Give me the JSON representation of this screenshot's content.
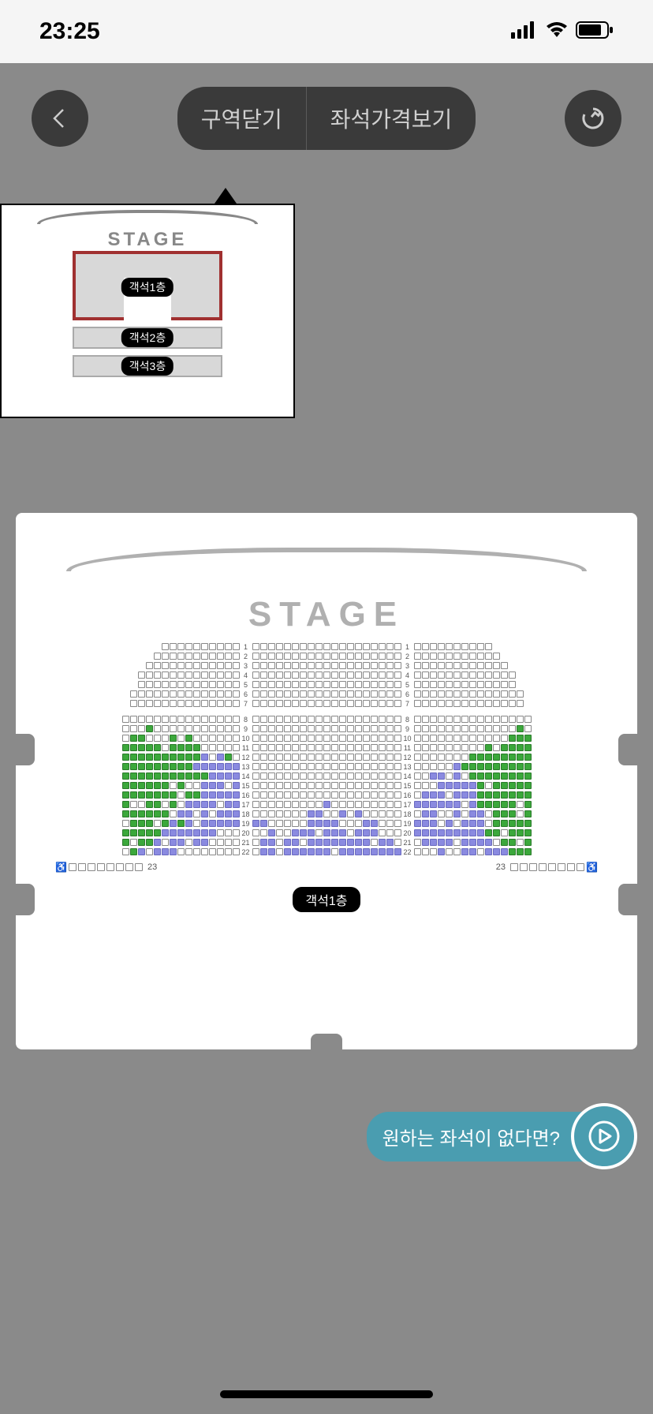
{
  "status": {
    "time": "23:25"
  },
  "toolbar": {
    "zone_close": "구역닫기",
    "price_view": "좌석가격보기"
  },
  "minimap": {
    "stage": "STAGE",
    "floor1": "객석1층",
    "floor2": "객석2층",
    "floor3": "객석3층"
  },
  "main": {
    "stage": "STAGE",
    "floor_label": "객석1층",
    "row_23_left": "23",
    "row_23_right": "23",
    "colors": {
      "available": "#ffffff",
      "green": "#3ba83b",
      "purple": "#8a8ae0"
    },
    "block1_rows": [
      1,
      2,
      3,
      4,
      5,
      6,
      7
    ],
    "block1": {
      "left": [
        "0000000000",
        "00000000000",
        "000000000000",
        "0000000000000",
        "0000000000000",
        "00000000000000",
        "00000000000000"
      ],
      "center": [
        "0000000000000000000",
        "0000000000000000000",
        "0000000000000000000",
        "0000000000000000000",
        "0000000000000000000",
        "0000000000000000000",
        "0000000000000000000"
      ],
      "right": [
        "0000000000",
        "00000000000",
        "000000000000",
        "0000000000000",
        "0000000000000",
        "00000000000000",
        "00000000000000"
      ]
    },
    "block2_rows": [
      8,
      9,
      10,
      11,
      12,
      13,
      14,
      15,
      16,
      17,
      18,
      19,
      20,
      21,
      22
    ],
    "block2": {
      "left": [
        "000000000000000",
        "000g00000000000",
        "0gg000g0g000000",
        "ggggg0gggg00000",
        "ggggggggggp0pg0",
        "gggggggggpppppp",
        "gggggggggggpppp",
        "gggggg0g00ppp0p",
        "ggggggg0ggppppp",
        "g00gg0g0pppp0pp",
        "gggggg0pp0p0ppp",
        "0ggg0gpgp0ppppp",
        "gggggppppppp000",
        "g0ggp0pp0pp0000",
        "0gp0ppp00000000"
      ],
      "center": [
        "0000000000000000000",
        "0000000000000000000",
        "0000000000000000000",
        "0000000000000000000",
        "0000000000000000000",
        "0000000000000000000",
        "0000000000000000000",
        "0000000000000000000",
        "0000000000000000000",
        "000000000p000000000",
        "0000000pp00p0p00000",
        "pp00000pppp000pp000",
        "00p00ppp0ppp0ppp000",
        "0pp0pp0pppppppp0pp0",
        "0pp0pppppp0pppppppp"
      ],
      "right": [
        "000000000000000",
        "0000000000000g0",
        "000000000000ggg",
        "000000000g0gggg",
        "0000000gggggggg",
        "00000pggggggggg",
        "00pp0p0gggggggg",
        "000pppppg0ggggg",
        "0ppp0pppggggggg",
        "pppppp0pggggg0g",
        "0pp00p0pp0ggg0g",
        "ppp0p0ppp0ggggg",
        "pppppppppgg0ggg",
        "0pppp0pppp0gg0g",
        "000p00pp0pppggg"
      ]
    }
  },
  "help": {
    "text": "원하는 좌석이 없다면?"
  }
}
